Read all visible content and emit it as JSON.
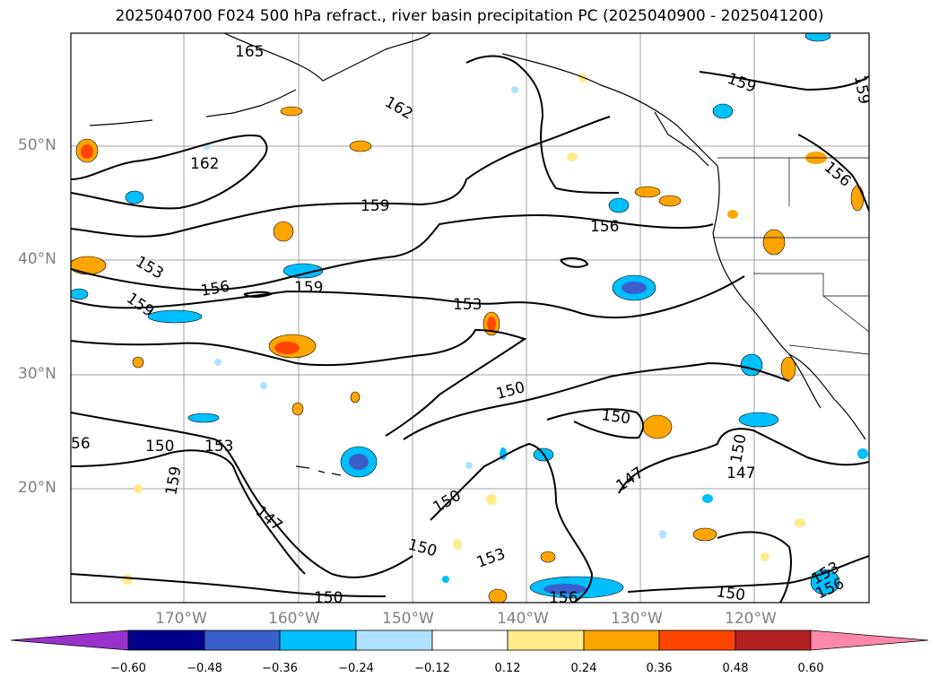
{
  "title": "2025040700 F024 500 hPa refract., river basin precipitation PC (2025040900 - 2025041200)",
  "lat_labels": [
    "50°N",
    "40°N",
    "30°N",
    "20°N"
  ],
  "lon_labels": [
    "170°W",
    "160°W",
    "150°W",
    "140°W",
    "130°W",
    "120°W"
  ],
  "contour_labels": [
    "165",
    "162",
    "162",
    "159",
    "159",
    "159",
    "159",
    "156",
    "156",
    "156",
    "153",
    "153",
    "153",
    "150",
    "150",
    "150",
    "150",
    "150",
    "150",
    "147",
    "147",
    "147",
    "159",
    "153",
    "156",
    "150",
    "56",
    "159",
    "150",
    "153",
    "156"
  ],
  "colorbar": {
    "ticks": [
      "−0.60",
      "−0.48",
      "−0.36",
      "−0.24",
      "−0.12",
      "0.12",
      "0.24",
      "0.36",
      "0.48",
      "0.60"
    ],
    "colors": [
      "#9932cc",
      "#00008b",
      "#3a5fcd",
      "#00bfff",
      "#b0e2ff",
      "#ffffff",
      "#ffeb8a",
      "#ffa500",
      "#ff4500",
      "#b22222",
      "#ff88aa"
    ]
  },
  "legend_colors": {
    "neg_extreme": "#9932cc",
    "pos_extreme": "#ff88aa"
  }
}
